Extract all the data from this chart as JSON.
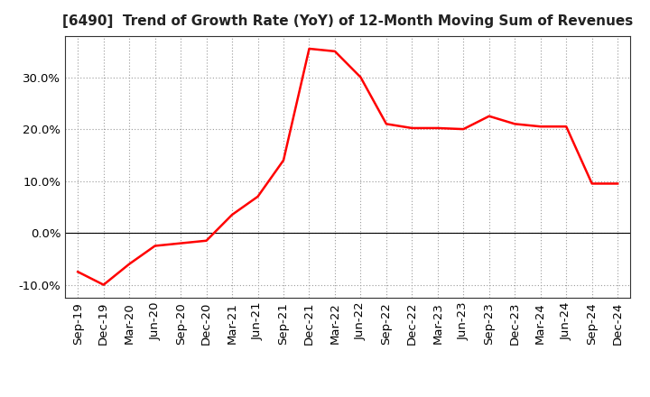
{
  "title": "[6490]  Trend of Growth Rate (YoY) of 12-Month Moving Sum of Revenues",
  "title_fontsize": 11,
  "line_color": "#FF0000",
  "line_width": 1.8,
  "background_color": "#FFFFFF",
  "grid_color": "#999999",
  "xlabels": [
    "Sep-19",
    "Dec-19",
    "Mar-20",
    "Jun-20",
    "Sep-20",
    "Dec-20",
    "Mar-21",
    "Jun-21",
    "Sep-21",
    "Dec-21",
    "Mar-22",
    "Jun-22",
    "Sep-22",
    "Dec-22",
    "Mar-23",
    "Jun-23",
    "Sep-23",
    "Dec-23",
    "Mar-24",
    "Jun-24",
    "Sep-24",
    "Dec-24"
  ],
  "yvalues": [
    -7.5,
    -10.0,
    -6.0,
    -2.5,
    -2.0,
    -1.5,
    3.5,
    7.0,
    14.0,
    35.5,
    35.0,
    30.0,
    21.0,
    20.2,
    20.2,
    20.0,
    22.5,
    21.0,
    20.5,
    20.5,
    9.5,
    9.5
  ],
  "ylim": [
    -12.5,
    38
  ],
  "yticks": [
    -10.0,
    0.0,
    10.0,
    20.0,
    30.0
  ],
  "tick_fontsize": 9.5
}
